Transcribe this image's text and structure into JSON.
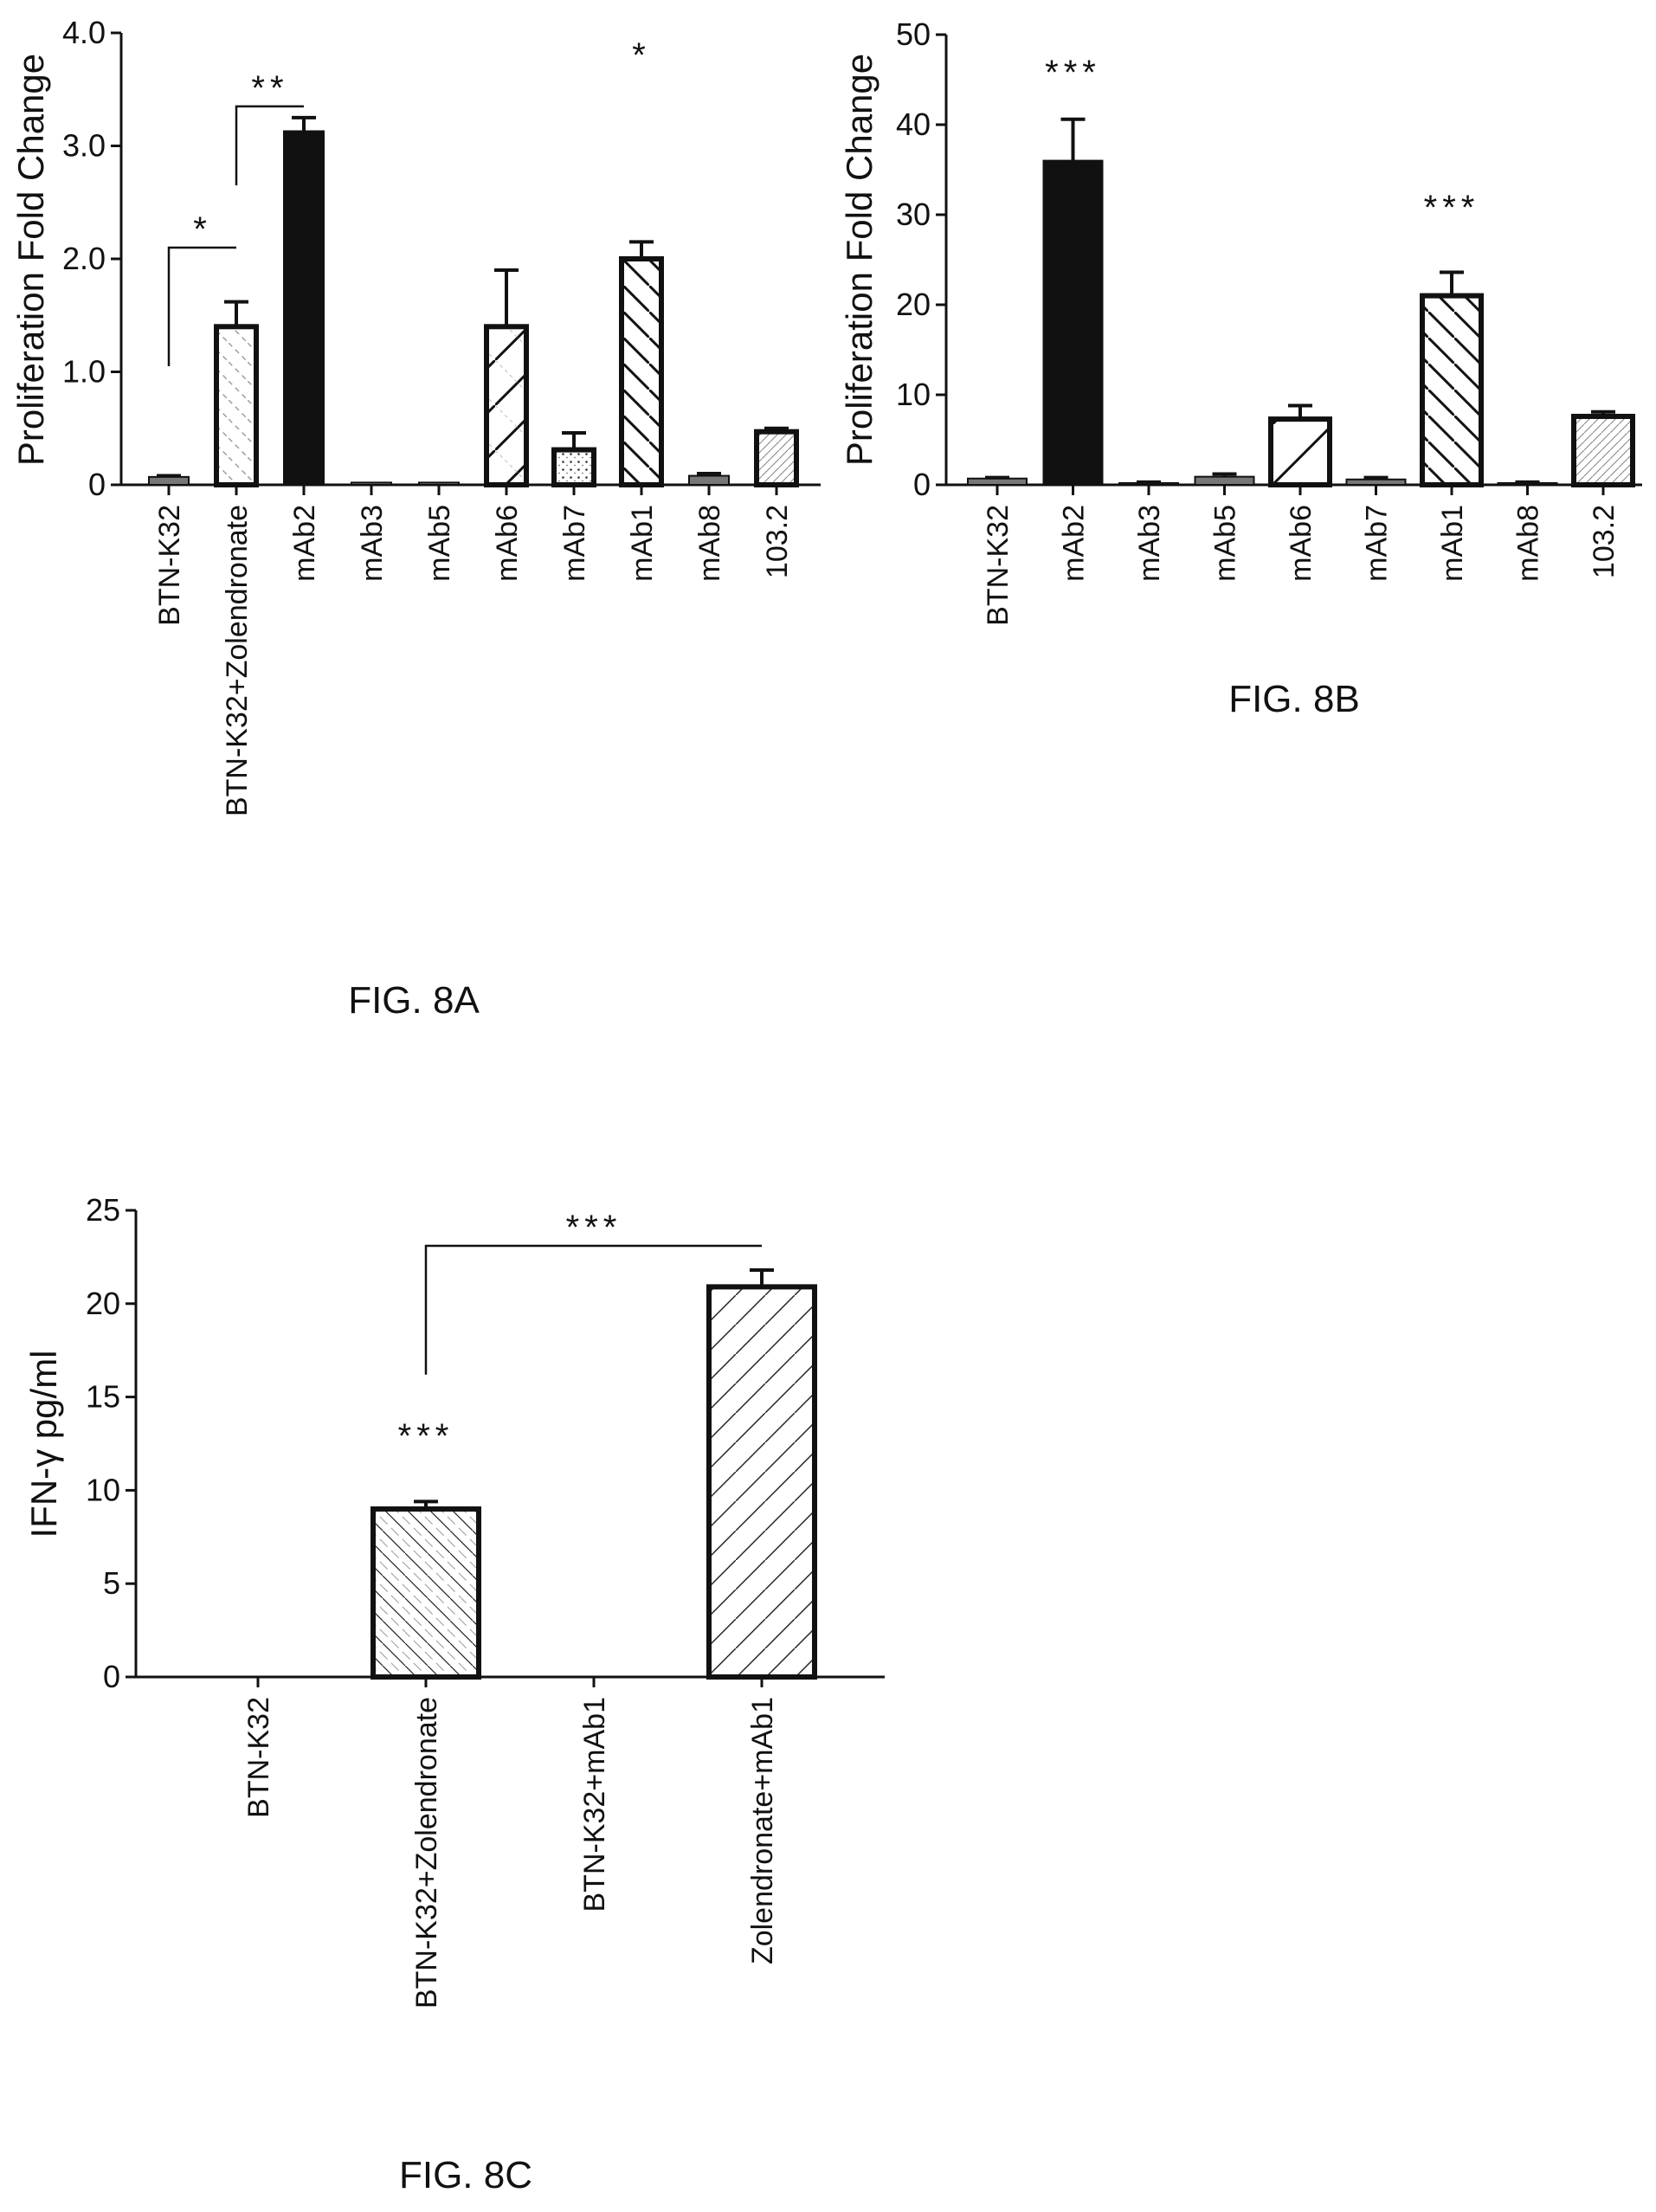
{
  "page": {
    "background": "#ffffff",
    "ink": "#111111"
  },
  "chart_data": [
    {
      "id": "8A",
      "type": "bar",
      "caption": "FIG. 8A",
      "ylabel": "Proliferation Fold Change",
      "xlabel": "",
      "ylim": [
        0,
        4.0
      ],
      "yticks": [
        {
          "value": 0,
          "label": "0"
        },
        {
          "value": 1.0,
          "label": "1.0"
        },
        {
          "value": 2.0,
          "label": "2.0"
        },
        {
          "value": 3.0,
          "label": "3.0"
        },
        {
          "value": 4.0,
          "label": "4.0"
        }
      ],
      "categories": [
        "BTN-K32",
        "BTN-K32+Zolendronate",
        "mAb2",
        "mAb3",
        "mAb5",
        "mAb6",
        "mAb7",
        "mAb1",
        "mAb8",
        "103.2"
      ],
      "values": [
        0.07,
        1.4,
        3.13,
        0.02,
        0.02,
        1.4,
        0.31,
        2.0,
        0.08,
        0.47
      ],
      "errors": [
        0.01,
        0.22,
        0.12,
        0.0,
        0.0,
        0.5,
        0.15,
        0.15,
        0.02,
        0.03
      ],
      "patterns": [
        "solid-gray",
        "dashed-diag",
        "solid-black",
        "solid-gray",
        "solid-gray",
        "cross-diag",
        "dots",
        "back-diag",
        "solid-gray",
        "fine-diag"
      ],
      "annotations": [
        {
          "text": "*",
          "bracket": [
            0,
            1
          ],
          "y": 2.1,
          "from_y": 1.05
        },
        {
          "text": "**",
          "bracket": [
            1,
            2
          ],
          "y": 3.35,
          "from_y": 2.65
        },
        {
          "text": "*",
          "over": 7,
          "y": 3.7
        }
      ],
      "grid": false,
      "legend": "none"
    },
    {
      "id": "8B",
      "type": "bar",
      "caption": "FIG. 8B",
      "ylabel": "Proliferation Fold Change",
      "xlabel": "",
      "ylim": [
        0,
        50
      ],
      "yticks": [
        {
          "value": 0,
          "label": "0"
        },
        {
          "value": 10,
          "label": "10"
        },
        {
          "value": 20,
          "label": "20"
        },
        {
          "value": 30,
          "label": "30"
        },
        {
          "value": 40,
          "label": "40"
        },
        {
          "value": 50,
          "label": "50"
        }
      ],
      "categories": [
        "BTN-K32",
        "mAb2",
        "mAb3",
        "mAb5",
        "mAb6",
        "mAb7",
        "mAb1",
        "mAb8",
        "103.2"
      ],
      "values": [
        0.7,
        36.0,
        0.2,
        0.9,
        7.3,
        0.6,
        21.0,
        0.2,
        7.6
      ],
      "errors": [
        0.1,
        4.6,
        0.1,
        0.3,
        1.5,
        0.2,
        2.6,
        0.1,
        0.5
      ],
      "patterns": [
        "solid-gray",
        "solid-black",
        "solid-gray",
        "solid-gray",
        "single-diag",
        "solid-gray",
        "back-diag",
        "solid-gray",
        "fine-diag"
      ],
      "annotations": [
        {
          "text": "***",
          "over": 1,
          "y": 44.5
        },
        {
          "text": "***",
          "over": 6,
          "y": 29.5
        }
      ],
      "grid": false,
      "legend": "none"
    },
    {
      "id": "8C",
      "type": "bar",
      "caption": "FIG. 8C",
      "ylabel": "IFN-γ pg/ml",
      "xlabel": "",
      "ylim": [
        0,
        25
      ],
      "yticks": [
        {
          "value": 0,
          "label": "0"
        },
        {
          "value": 5,
          "label": "5"
        },
        {
          "value": 10,
          "label": "10"
        },
        {
          "value": 15,
          "label": "15"
        },
        {
          "value": 20,
          "label": "20"
        },
        {
          "value": 25,
          "label": "25"
        }
      ],
      "categories": [
        "BTN-K32",
        "BTN-K32+Zolendronate",
        "BTN-K32+mAb1",
        "Zolendronate+mAb1"
      ],
      "values": [
        0,
        9.0,
        0,
        20.9
      ],
      "errors": [
        0,
        0.4,
        0,
        0.9
      ],
      "patterns": [
        "none",
        "back-diag-dashed",
        "none",
        "forward-diag"
      ],
      "annotations": [
        {
          "text": "***",
          "over": 1,
          "y": 12.3
        },
        {
          "text": "***",
          "bracket": [
            1,
            3
          ],
          "y": 23.1,
          "from_y": 16.2
        }
      ],
      "grid": false,
      "legend": "none"
    }
  ]
}
